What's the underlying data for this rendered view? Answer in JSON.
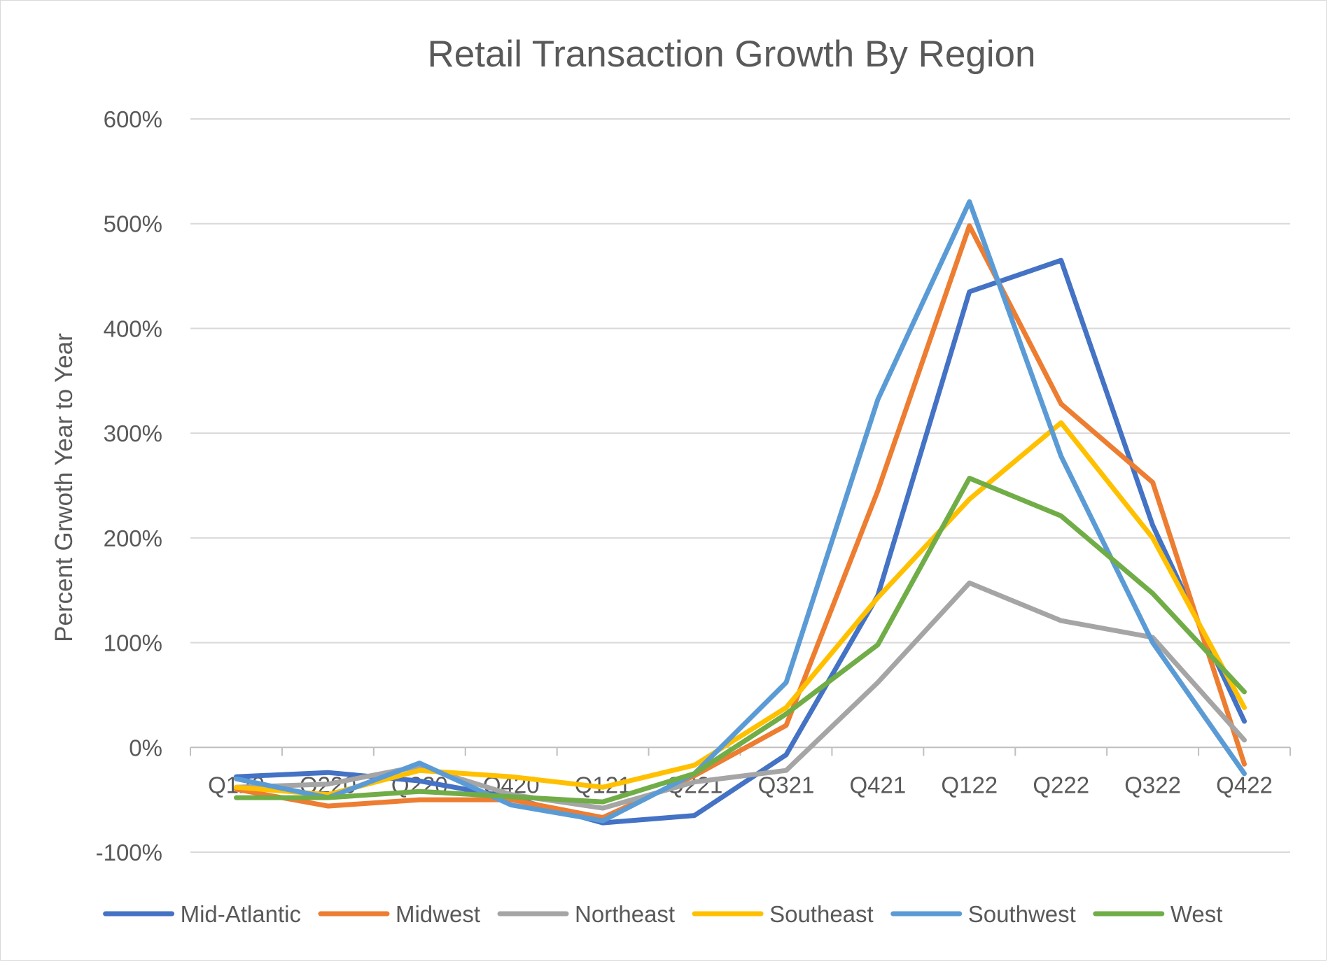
{
  "chart_data": {
    "type": "line",
    "title": "Retail Transaction Growth By Region",
    "ylabel": "Percent Grwoth Year to Year",
    "xlabel": "",
    "ylim": [
      -100,
      600
    ],
    "yticks": [
      -100,
      0,
      100,
      200,
      300,
      400,
      500,
      600
    ],
    "ytick_labels": [
      "-100%",
      "0%",
      "100%",
      "200%",
      "300%",
      "400%",
      "500%",
      "600%"
    ],
    "categories": [
      "Q120",
      "Q220",
      "Q220",
      "Q420",
      "Q121",
      "Q221",
      "Q321",
      "Q421",
      "Q122",
      "Q222",
      "Q322",
      "Q422"
    ],
    "grid": true,
    "legend_position": "bottom",
    "series": [
      {
        "name": "Mid-Atlantic",
        "color": "#4472C4",
        "values": [
          -28,
          -24,
          -32,
          -48,
          -72,
          -65,
          -7,
          145,
          435,
          465,
          212,
          25
        ]
      },
      {
        "name": "Midwest",
        "color": "#ED7D31",
        "values": [
          -40,
          -56,
          -50,
          -50,
          -67,
          -27,
          21,
          245,
          498,
          328,
          253,
          -16
        ]
      },
      {
        "name": "Northeast",
        "color": "#A5A5A5",
        "values": [
          -38,
          -35,
          -18,
          -45,
          -58,
          -33,
          -22,
          62,
          157,
          121,
          105,
          7
        ]
      },
      {
        "name": "Southeast",
        "color": "#FFC000",
        "values": [
          -38,
          -45,
          -22,
          -28,
          -38,
          -17,
          38,
          143,
          237,
          310,
          200,
          38
        ]
      },
      {
        "name": "Southwest",
        "color": "#5B9BD5",
        "values": [
          -30,
          -48,
          -15,
          -55,
          -70,
          -25,
          62,
          332,
          521,
          278,
          100,
          -25
        ]
      },
      {
        "name": "West",
        "color": "#70AD47",
        "values": [
          -48,
          -48,
          -42,
          -47,
          -52,
          -25,
          32,
          98,
          257,
          221,
          147,
          53
        ]
      }
    ]
  }
}
